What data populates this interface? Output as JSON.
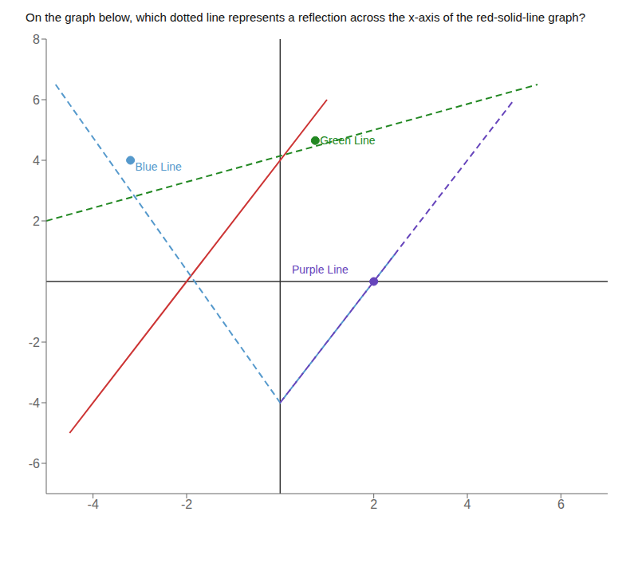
{
  "chart_data": {
    "type": "line",
    "title": "On the graph below, which dotted line represents a reflection across the x-axis of the red-solid-line graph?",
    "xlim": [
      -5,
      7
    ],
    "ylim": [
      -7,
      8
    ],
    "xticks": [
      -4,
      -2,
      2,
      4,
      6
    ],
    "yticks": [
      -6,
      -4,
      -2,
      2,
      4,
      6,
      8
    ],
    "grid": false,
    "series": [
      {
        "color": "#cc3333",
        "line_style": "solid",
        "x": [
          -4.5,
          1.0
        ],
        "values": [
          -5.0,
          6.0
        ]
      },
      {
        "color": "#5599cc",
        "line_style": "dashed",
        "x": [
          -4.8,
          0.0,
          2.5
        ],
        "values": [
          6.5,
          -4.0,
          1.0
        ]
      },
      {
        "color": "#228822",
        "line_style": "dashed",
        "x": [
          -5.0,
          5.5
        ],
        "values": [
          2.0,
          6.5
        ]
      },
      {
        "color": "#6644bb",
        "line_style": "dashed",
        "x": [
          0.0,
          2.0,
          5.0
        ],
        "values": [
          -4.0,
          0.0,
          6.0
        ]
      }
    ],
    "annotations": [
      {
        "text": "Blue Line",
        "x": -3.1,
        "y": 3.8,
        "color": "#5599cc",
        "dot_x": -3.2,
        "dot_y": 4.0
      },
      {
        "text": "Green Line",
        "x": 0.85,
        "y": 4.65,
        "color": "#228822",
        "dot_x": 0.75,
        "dot_y": 4.65
      },
      {
        "text": "Purple Line",
        "x": 0.25,
        "y": 0.4,
        "color": "#6644bb",
        "dot_x": 2.0,
        "dot_y": 0.0
      }
    ]
  }
}
